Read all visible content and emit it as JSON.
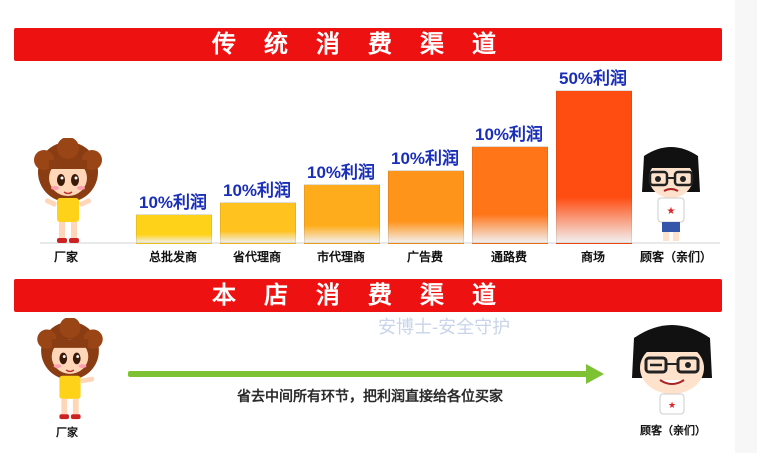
{
  "top_banner": {
    "title": "传统消费渠道"
  },
  "bottom_banner": {
    "title": "本店消费渠道"
  },
  "left_person_label": "厂家",
  "right_person_label": "顾客（亲们）",
  "bottom_left_label": "厂家",
  "bottom_right_label": "顾客（亲们）",
  "arrow_text": "省去中间所有环节，把利润直接给各位买家",
  "watermark": "安博士-安全守护",
  "colors": {
    "banner": "#ee1111",
    "label_blue": "#1a2fb8",
    "arrow": "#7cc233"
  },
  "chart_data": {
    "type": "bar",
    "categories": [
      "总批发商",
      "省代理商",
      "市代理商",
      "广告费",
      "通路费",
      "商场"
    ],
    "values": [
      10,
      10,
      10,
      10,
      10,
      50
    ],
    "labels": [
      "10%利润",
      "10%利润",
      "10%利润",
      "10%利润",
      "10%利润",
      "50%利润"
    ],
    "ylim": [
      0,
      60
    ]
  }
}
